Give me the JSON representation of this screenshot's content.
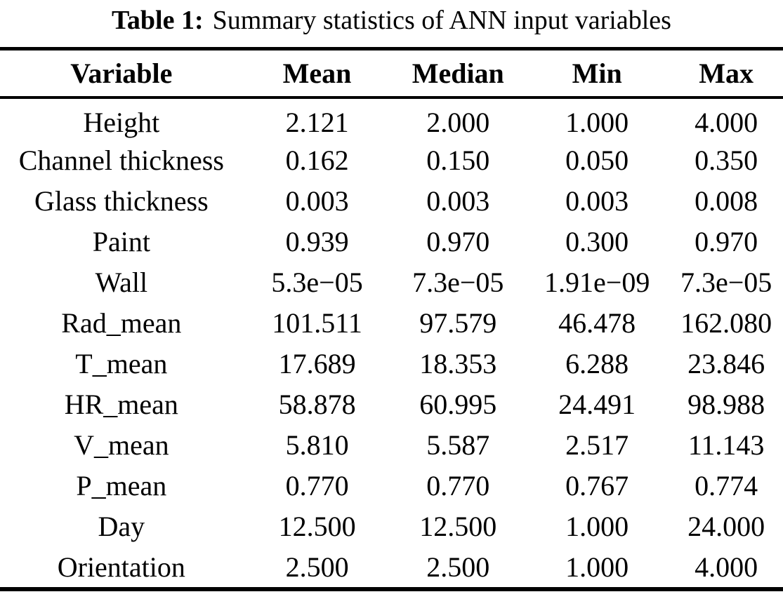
{
  "caption": {
    "label": "Table 1:",
    "text": "Summary statistics of ANN input variables"
  },
  "table": {
    "columns": [
      "Variable",
      "Mean",
      "Median",
      "Min",
      "Max"
    ],
    "rows": [
      [
        "Height",
        "2.121",
        "2.000",
        "1.000",
        "4.000"
      ],
      [
        "Channel thickness",
        "0.162",
        "0.150",
        "0.050",
        "0.350"
      ],
      [
        "Glass thickness",
        "0.003",
        "0.003",
        "0.003",
        "0.008"
      ],
      [
        "Paint",
        "0.939",
        "0.970",
        "0.300",
        "0.970"
      ],
      [
        "Wall",
        "5.3e−05",
        "7.3e−05",
        "1.91e−09",
        "7.3e−05"
      ],
      [
        "Rad_mean",
        "101.511",
        "97.579",
        "46.478",
        "162.080"
      ],
      [
        "T_mean",
        "17.689",
        "18.353",
        "6.288",
        "23.846"
      ],
      [
        "HR_mean",
        "58.878",
        "60.995",
        "24.491",
        "98.988"
      ],
      [
        "V_mean",
        "5.810",
        "5.587",
        "2.517",
        "11.143"
      ],
      [
        "P_mean",
        "0.770",
        "0.770",
        "0.767",
        "0.774"
      ],
      [
        "Day",
        "12.500",
        "12.500",
        "1.000",
        "24.000"
      ],
      [
        "Orientation",
        "2.500",
        "2.500",
        "1.000",
        "4.000"
      ]
    ]
  },
  "colors": {
    "text": "#000000",
    "background": "#ffffff",
    "rule": "#000000"
  }
}
